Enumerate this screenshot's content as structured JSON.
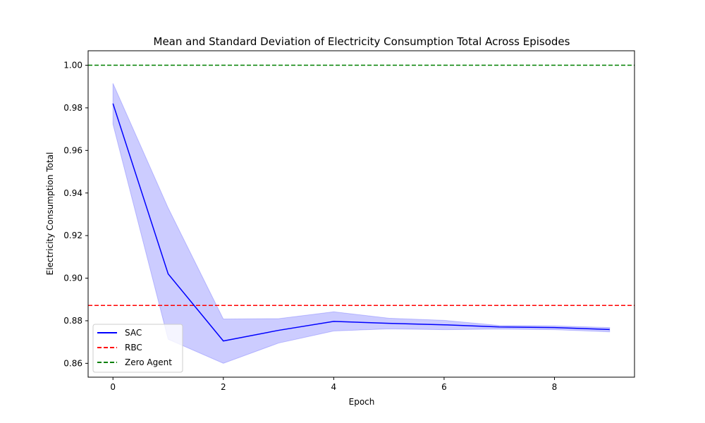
{
  "chart_data": {
    "type": "line",
    "title": "Mean and Standard Deviation of Electricity Consumption Total Across Episodes",
    "xlabel": "Epoch",
    "ylabel": "Electricity Consumption Total",
    "xlim": [
      -0.45,
      9.45
    ],
    "ylim": [
      0.8535,
      1.0068
    ],
    "x_ticks": [
      0,
      2,
      4,
      6,
      8
    ],
    "y_ticks": [
      0.86,
      0.88,
      0.9,
      0.92,
      0.94,
      0.96,
      0.98,
      1.0
    ],
    "x_tick_labels": [
      "0",
      "2",
      "4",
      "6",
      "8"
    ],
    "y_tick_labels": [
      "0.86",
      "0.88",
      "0.90",
      "0.92",
      "0.94",
      "0.96",
      "0.98",
      "1.00"
    ],
    "grid": false,
    "legend_position": "lower-left",
    "series": [
      {
        "name": "SAC",
        "color": "#0000ff",
        "style": "solid",
        "x": [
          0,
          1,
          2,
          3,
          4,
          5,
          6,
          7,
          8,
          9
        ],
        "y": [
          0.982,
          0.902,
          0.8705,
          0.8755,
          0.8797,
          0.8788,
          0.8781,
          0.8771,
          0.8768,
          0.8759
        ],
        "band_lower": [
          0.9723,
          0.8713,
          0.86,
          0.8695,
          0.8752,
          0.8762,
          0.8758,
          0.8761,
          0.8758,
          0.8748
        ],
        "band_upper": [
          0.9915,
          0.933,
          0.8808,
          0.881,
          0.8842,
          0.8812,
          0.8802,
          0.8778,
          0.8776,
          0.8768
        ],
        "band_color": "#0000ff",
        "band_opacity": 0.2
      },
      {
        "name": "RBC",
        "color": "#ff0000",
        "style": "dashed",
        "y_constant": 0.8872
      },
      {
        "name": "Zero Agent",
        "color": "#008000",
        "style": "dashed",
        "y_constant": 1.0
      }
    ]
  }
}
